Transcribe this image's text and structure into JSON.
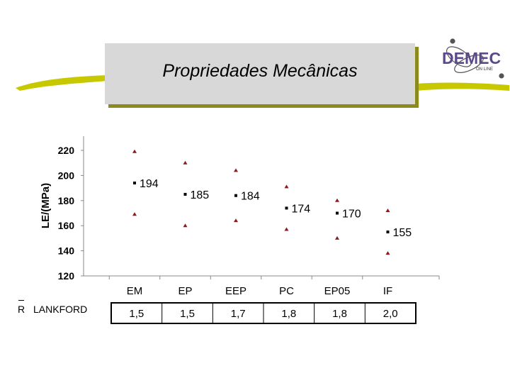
{
  "slide": {
    "title": "Propriedades Mecânicas",
    "brand": {
      "name": "DEMEC",
      "tagline": "ON LINE",
      "color": "#5a4a8a"
    },
    "accent_color": "#c8c800",
    "shadow_color": "#8c8a1a"
  },
  "chart_data": {
    "type": "scatter",
    "title": "",
    "xlabel": "",
    "ylabel": "LE/(MPa)",
    "ylim": [
      120,
      220
    ],
    "yticks": [
      120,
      140,
      160,
      180,
      200,
      220
    ],
    "grid": false,
    "categories": [
      "EM",
      "EP",
      "EEP",
      "PC",
      "EP05",
      "IF"
    ],
    "series": [
      {
        "role": "upper",
        "marker": "triangle",
        "color": "#8b1a1a",
        "values": [
          219,
          210,
          204,
          191,
          180,
          172
        ]
      },
      {
        "role": "mean",
        "marker": "square",
        "color": "#000000",
        "values": [
          194,
          185,
          184,
          174,
          170,
          155
        ]
      },
      {
        "role": "lower",
        "marker": "triangle",
        "color": "#8b1a1a",
        "values": [
          169,
          160,
          164,
          157,
          150,
          138
        ]
      }
    ],
    "data_labels": [
      "194",
      "185",
      "184",
      "174",
      "170",
      "155"
    ]
  },
  "lankford": {
    "label": "LANKFORD",
    "symbol": "R",
    "values": [
      "1,5",
      "1,5",
      "1,7",
      "1,8",
      "1,8",
      "2,0"
    ]
  }
}
